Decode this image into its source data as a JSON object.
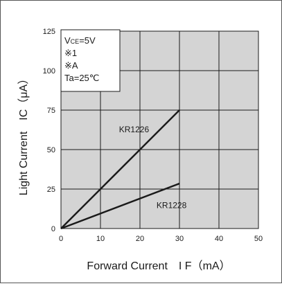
{
  "chart_data": {
    "type": "line",
    "title": "",
    "xlabel": "Forward Current　I F（mA）",
    "ylabel": "Light Current　IC（μA）",
    "xlim": [
      0,
      50
    ],
    "ylim": [
      0,
      125
    ],
    "x_ticks": [
      0,
      10,
      20,
      30,
      40,
      50
    ],
    "y_ticks": [
      0,
      25,
      50,
      75,
      100,
      125
    ],
    "x_tick_labels": [
      "0",
      "10",
      "20",
      "30",
      "40",
      "50"
    ],
    "y_tick_labels": [
      "0",
      "25",
      "50",
      "75",
      "100",
      "125"
    ],
    "grid": true,
    "plot_background": "#d4d4d4",
    "grid_color": "#1a1a1a",
    "line_color": "#1a1a1a",
    "series": [
      {
        "name": "KR1226",
        "x": [
          0,
          30
        ],
        "y": [
          0,
          75
        ]
      },
      {
        "name": "KR1228",
        "x": [
          0,
          30
        ],
        "y": [
          0,
          28.5
        ]
      }
    ],
    "series_label_anchor": [
      [
        18.5,
        61
      ],
      [
        28,
        13
      ]
    ],
    "conditions": [
      "VCE=5V",
      "※1",
      "※A",
      "Ta=25℃"
    ],
    "conditions_placement": "top-left"
  }
}
